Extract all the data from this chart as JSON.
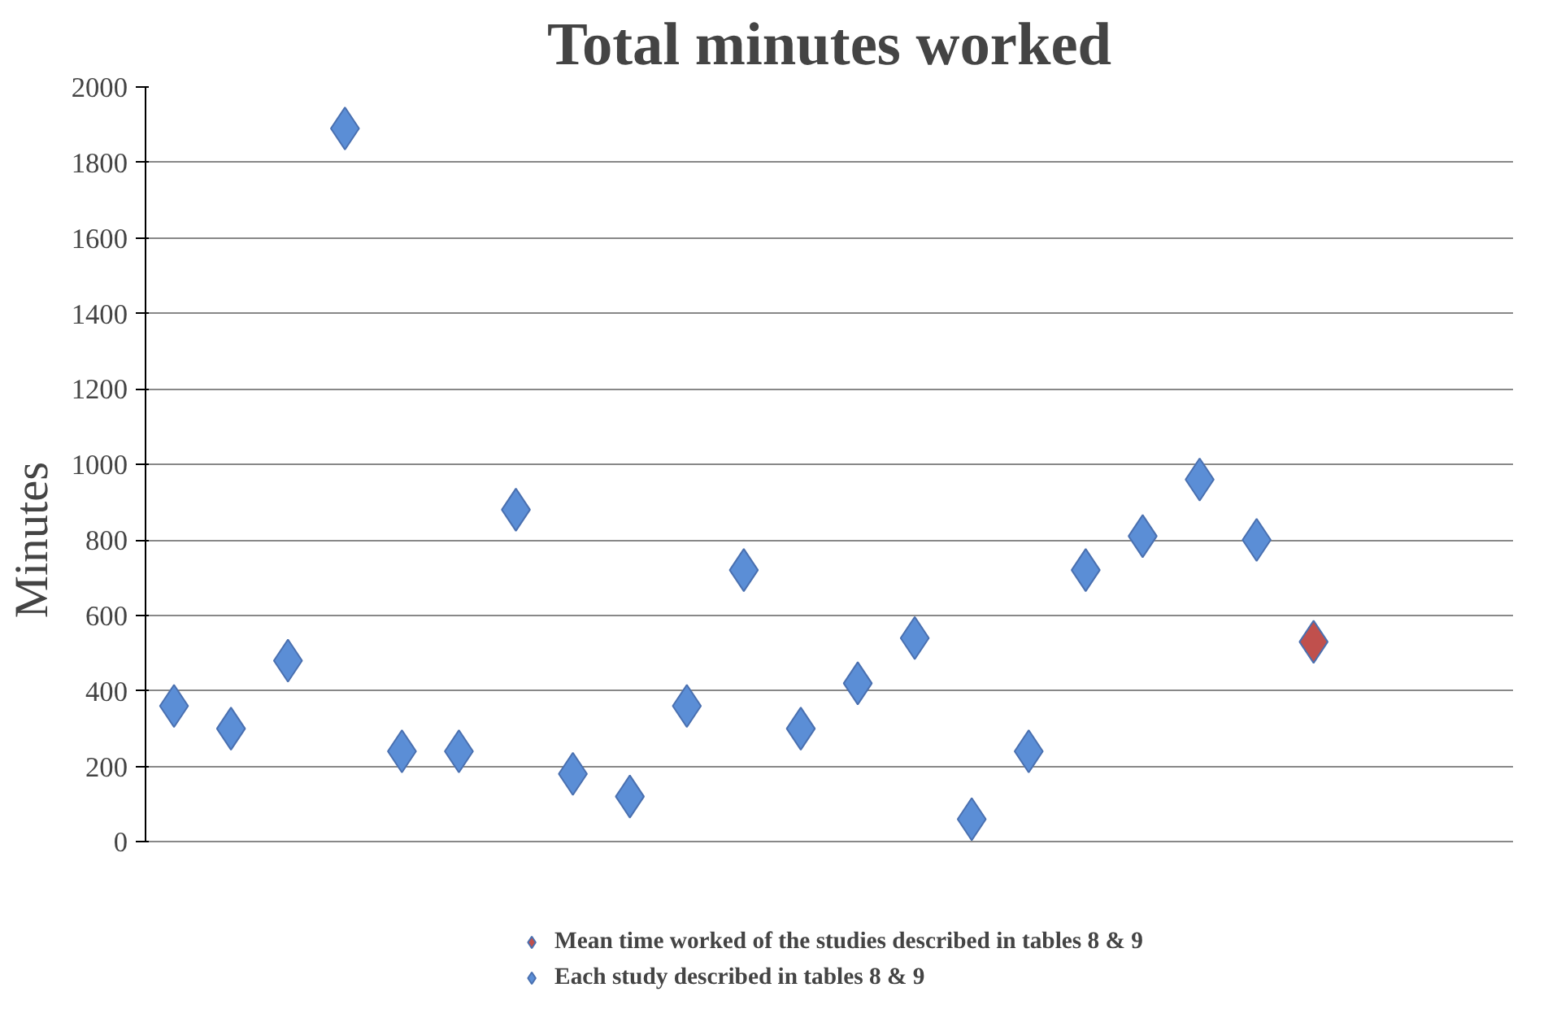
{
  "chart_data": {
    "type": "scatter",
    "title": "Total minutes worked",
    "ylabel": "Minutes",
    "categories": [
      null,
      null,
      null,
      null,
      null,
      null,
      null,
      null,
      null,
      null,
      null,
      null,
      null,
      null,
      null,
      null,
      null,
      null,
      null,
      null,
      null,
      null,
      null,
      null
    ],
    "series": [
      {
        "name": "Mean time worked of the studies described in tables 8 & 9",
        "color": "#c0504d",
        "values": [
          null,
          null,
          null,
          null,
          null,
          null,
          null,
          null,
          null,
          null,
          null,
          null,
          null,
          null,
          null,
          null,
          null,
          null,
          null,
          null,
          530,
          null,
          null,
          null
        ]
      },
      {
        "name": "Each study described in tables 8 & 9",
        "color": "#5b8ed6",
        "values": [
          360,
          300,
          480,
          1890,
          240,
          240,
          880,
          180,
          120,
          360,
          720,
          300,
          420,
          540,
          60,
          240,
          720,
          810,
          960,
          800,
          null,
          null,
          null,
          null
        ]
      }
    ],
    "ylim": [
      0,
      2000
    ],
    "yticks": [
      0,
      200,
      400,
      600,
      800,
      1000,
      1200,
      1400,
      1600,
      1800,
      2000
    ],
    "grid": "y",
    "legend": "bottom",
    "marker": "diamond",
    "tick_labels": "y"
  }
}
